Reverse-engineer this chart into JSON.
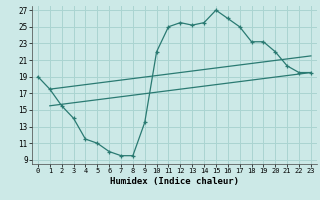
{
  "title": "",
  "xlabel": "Humidex (Indice chaleur)",
  "bg_color": "#cce9e7",
  "grid_color": "#aad4d1",
  "line_color": "#2a7a72",
  "xlim": [
    -0.5,
    23.5
  ],
  "ylim": [
    8.5,
    27.5
  ],
  "xticks": [
    0,
    1,
    2,
    3,
    4,
    5,
    6,
    7,
    8,
    9,
    10,
    11,
    12,
    13,
    14,
    15,
    16,
    17,
    18,
    19,
    20,
    21,
    22,
    23
  ],
  "yticks": [
    9,
    11,
    13,
    15,
    17,
    19,
    21,
    23,
    25,
    27
  ],
  "series1_x": [
    0,
    1,
    2,
    3,
    4,
    5,
    6,
    7,
    8,
    9,
    10,
    11,
    12,
    13,
    14,
    15,
    16,
    17,
    18,
    19,
    20,
    21,
    22,
    23
  ],
  "series1_y": [
    19.0,
    17.5,
    15.5,
    14.0,
    11.5,
    11.0,
    10.0,
    9.5,
    9.5,
    13.5,
    22.0,
    25.0,
    25.5,
    25.2,
    25.5,
    27.0,
    26.0,
    25.0,
    23.2,
    23.2,
    22.0,
    20.3,
    19.5,
    19.5
  ],
  "series2_x": [
    1,
    23
  ],
  "series2_y": [
    17.5,
    21.5
  ],
  "series3_x": [
    1,
    23
  ],
  "series3_y": [
    15.5,
    19.5
  ],
  "series1_marker_x": [
    0,
    1,
    2,
    3,
    4,
    5,
    6,
    7,
    8,
    9,
    10,
    11,
    12,
    13,
    14,
    15,
    16,
    17,
    18,
    19,
    20,
    21,
    22,
    23
  ],
  "series1_marker_y": [
    19.0,
    17.5,
    15.5,
    14.0,
    11.5,
    11.0,
    10.0,
    9.5,
    9.5,
    13.5,
    22.0,
    25.0,
    25.5,
    25.2,
    25.5,
    27.0,
    26.0,
    25.0,
    23.2,
    23.2,
    22.0,
    20.3,
    19.5,
    19.5
  ]
}
